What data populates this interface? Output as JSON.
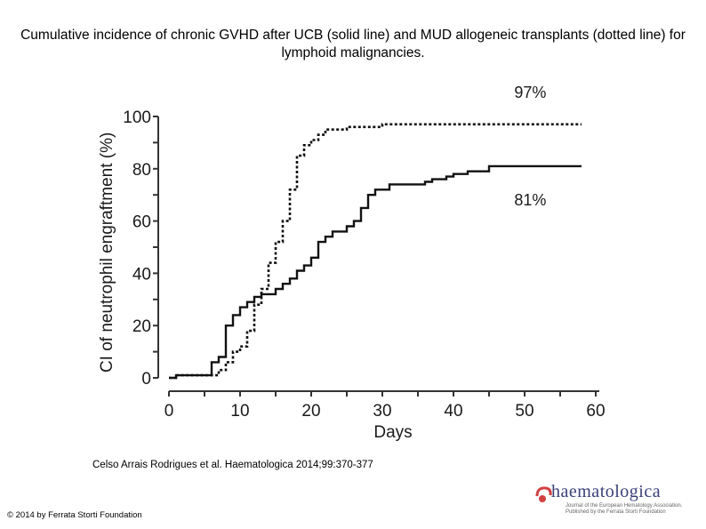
{
  "slide": {
    "title": "Cumulative incidence of chronic GVHD after UCB (solid line) and MUD allogeneic transplants (dotted line) for lymphoid malignancies.",
    "citation": "Celso Arrais Rodrigues et al. Haematologica 2014;99:370-377",
    "copyright": "© 2014 by Ferrata Storti Foundation",
    "logo_text": "haematologica",
    "logo_subtext": "Journal of the European Hematology Association. Published by the Ferrata Storti Foundation"
  },
  "chart_data": {
    "type": "line",
    "title": "",
    "xlabel": "Days",
    "ylabel": "CI of neutrophil engraftment (%)",
    "xlim": [
      0,
      60
    ],
    "ylim": [
      0,
      100
    ],
    "x_ticks": [
      0,
      10,
      20,
      30,
      40,
      50,
      60
    ],
    "y_ticks": [
      0,
      20,
      40,
      60,
      80,
      100
    ],
    "grid": false,
    "series": [
      {
        "name": "UCB",
        "style": "solid",
        "end_label": "81%",
        "points": [
          [
            0,
            0
          ],
          [
            1,
            0
          ],
          [
            1,
            1
          ],
          [
            6,
            1
          ],
          [
            6,
            6
          ],
          [
            7,
            6
          ],
          [
            7,
            8
          ],
          [
            8,
            8
          ],
          [
            8,
            20
          ],
          [
            9,
            20
          ],
          [
            9,
            24
          ],
          [
            10,
            24
          ],
          [
            10,
            27
          ],
          [
            11,
            27
          ],
          [
            11,
            29
          ],
          [
            12,
            29
          ],
          [
            12,
            31
          ],
          [
            13,
            31
          ],
          [
            13,
            32
          ],
          [
            15,
            32
          ],
          [
            15,
            34
          ],
          [
            16,
            34
          ],
          [
            16,
            36
          ],
          [
            17,
            36
          ],
          [
            17,
            38
          ],
          [
            18,
            38
          ],
          [
            18,
            41
          ],
          [
            19,
            41
          ],
          [
            19,
            43
          ],
          [
            20,
            43
          ],
          [
            20,
            46
          ],
          [
            21,
            46
          ],
          [
            21,
            52
          ],
          [
            22,
            52
          ],
          [
            22,
            54
          ],
          [
            23,
            54
          ],
          [
            23,
            56
          ],
          [
            25,
            56
          ],
          [
            25,
            58
          ],
          [
            26,
            58
          ],
          [
            26,
            60
          ],
          [
            27,
            60
          ],
          [
            27,
            65
          ],
          [
            28,
            65
          ],
          [
            28,
            70
          ],
          [
            29,
            70
          ],
          [
            29,
            72
          ],
          [
            31,
            72
          ],
          [
            31,
            74
          ],
          [
            36,
            74
          ],
          [
            36,
            75
          ],
          [
            37,
            75
          ],
          [
            37,
            76
          ],
          [
            39,
            76
          ],
          [
            39,
            77
          ],
          [
            40,
            77
          ],
          [
            40,
            78
          ],
          [
            42,
            78
          ],
          [
            42,
            79
          ],
          [
            45,
            79
          ],
          [
            45,
            81
          ],
          [
            58,
            81
          ]
        ]
      },
      {
        "name": "MUD",
        "style": "dotted",
        "end_label": "97%",
        "points": [
          [
            0,
            0
          ],
          [
            1,
            0
          ],
          [
            1,
            1
          ],
          [
            7,
            1
          ],
          [
            7,
            3
          ],
          [
            8,
            3
          ],
          [
            8,
            6
          ],
          [
            9,
            6
          ],
          [
            9,
            10
          ],
          [
            10,
            10
          ],
          [
            10,
            12
          ],
          [
            11,
            12
          ],
          [
            11,
            18
          ],
          [
            12,
            18
          ],
          [
            12,
            28
          ],
          [
            13,
            28
          ],
          [
            13,
            34
          ],
          [
            14,
            34
          ],
          [
            14,
            44
          ],
          [
            15,
            44
          ],
          [
            15,
            52
          ],
          [
            16,
            52
          ],
          [
            16,
            60
          ],
          [
            17,
            60
          ],
          [
            17,
            72
          ],
          [
            18,
            72
          ],
          [
            18,
            85
          ],
          [
            19,
            85
          ],
          [
            19,
            89
          ],
          [
            20,
            89
          ],
          [
            20,
            91
          ],
          [
            21,
            91
          ],
          [
            21,
            93
          ],
          [
            22,
            93
          ],
          [
            22,
            95
          ],
          [
            25,
            95
          ],
          [
            25,
            96
          ],
          [
            30,
            96
          ],
          [
            30,
            97
          ],
          [
            58,
            97
          ]
        ]
      }
    ]
  }
}
